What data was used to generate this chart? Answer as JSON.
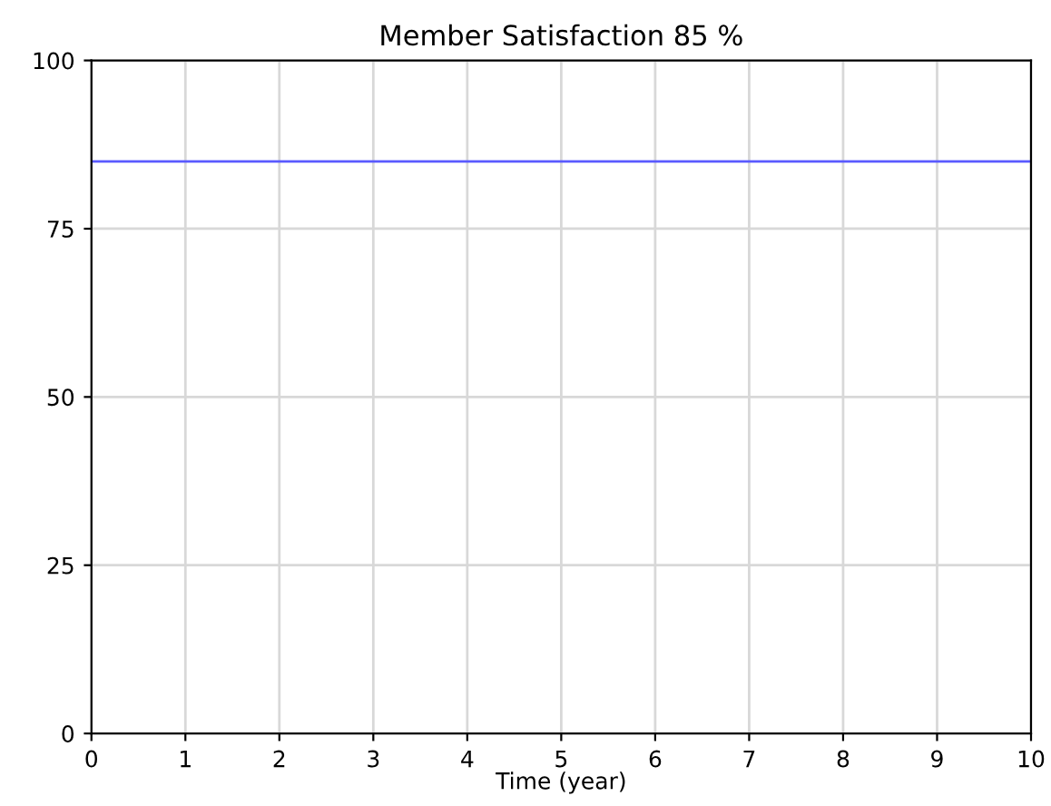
{
  "chart_data": {
    "type": "line",
    "title": "Member Satisfaction 85 %",
    "xlabel": "Time (year)",
    "x": [
      0,
      10
    ],
    "series": [
      {
        "color": "#5a5aff",
        "values": [
          85,
          85
        ]
      }
    ],
    "xlim": [
      0,
      10
    ],
    "ylim": [
      0,
      100
    ],
    "xticks": [
      0,
      1,
      2,
      3,
      4,
      5,
      6,
      7,
      8,
      9,
      10
    ],
    "yticks": [
      0,
      25,
      50,
      75,
      100
    ],
    "grid": true,
    "marker": "none",
    "line_style": "solid"
  }
}
